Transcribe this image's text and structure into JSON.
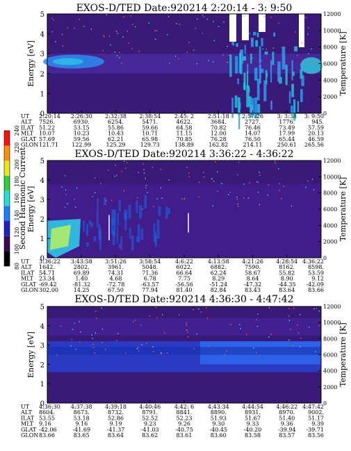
{
  "chart_data": [
    {
      "type": "heatmap",
      "title": "EXOS-D/TED   Date:920214  2:20:14 - 3: 9:50",
      "ylabel": "Energy [eV]",
      "y2label": "Temperature [K]",
      "ylim": [
        0,
        5
      ],
      "yticks": [
        "0",
        "1",
        "2",
        "3",
        "4",
        "5"
      ],
      "y2lim": [
        0,
        12000
      ],
      "y2ticks": [
        "0",
        "2000",
        "4000",
        "6000",
        "8000",
        "10000",
        "12000"
      ],
      "table_rows": [
        {
          "label": "UT",
          "values": [
            "2:20:14",
            "2:26:30",
            "2:32:38",
            "2:38:54",
            "2:45: 2",
            "2:51:18",
            "2:57:26",
            "3: 3:38",
            "3: 9:50"
          ]
        },
        {
          "label": "ALT",
          "values": [
            "7526.",
            "6930.",
            "6254.",
            "5471.",
            "4622.",
            "3684.",
            "2727.",
            "1776.",
            "945."
          ]
        },
        {
          "label": "ILAT",
          "values": [
            "51.22",
            "53.15",
            "55.86",
            "59.66",
            "64.58",
            "70.82",
            "76.46",
            "73.49",
            "57.59"
          ]
        },
        {
          "label": "MLT",
          "values": [
            "10.07",
            "10.23",
            "10.43",
            "10.71",
            "11.15",
            "12.00",
            "14.07",
            "17.99",
            "20.13"
          ]
        },
        {
          "label": "GLAT",
          "values": [
            "57.69",
            "59.56",
            "62.21",
            "65.98",
            "70.85",
            "76.28",
            "76.50",
            "65.44",
            "46.59"
          ]
        },
        {
          "label": "GLON",
          "values": [
            "121.71",
            "122.99",
            "125.29",
            "129.73",
            "138.89",
            "162.82",
            "214.11",
            "250.61",
            "265.56"
          ]
        }
      ]
    },
    {
      "type": "heatmap",
      "title": "EXOS-D/TED   Date:920214  3:36:22 - 4:36:22",
      "ylabel": "Energy [eV]",
      "y2label": "Temperature [K]",
      "ylim": [
        0,
        5
      ],
      "yticks": [
        "0",
        "1",
        "2",
        "3",
        "4",
        "5"
      ],
      "y2lim": [
        0,
        12000
      ],
      "y2ticks": [
        "0",
        "2000",
        "4000",
        "6000",
        "8000",
        "10000",
        "12000"
      ],
      "colorbar": {
        "label": "Second Harmonic Current",
        "min": 80,
        "max": 240,
        "ticks": [
          "80",
          "100",
          "120",
          "140",
          "160",
          "180",
          "200",
          "220",
          "240"
        ],
        "colors": [
          "#000000",
          "#3a0a58",
          "#2020c8",
          "#1880ff",
          "#20e0e0",
          "#30d040",
          "#e8e820",
          "#ff9000",
          "#ff1010"
        ]
      },
      "table_rows": [
        {
          "label": "UT",
          "values": [
            "3:36:22",
            "3:43:58",
            "3:51:26",
            "3:58:54",
            "4:6:22",
            "4:13:58",
            "4:21:26",
            "4:28:54",
            "4:36:22"
          ]
        },
        {
          "label": "ALT",
          "values": [
            "1642.",
            "2802.",
            "3961.",
            "5048.",
            "6022.",
            "6882.",
            "7590.",
            "8162.",
            "8598."
          ]
        },
        {
          "label": "ILAT",
          "values": [
            "54.71",
            "69.89",
            "74.31",
            "71.36",
            "66.64",
            "62.24",
            "58.67",
            "55.82",
            "53.59"
          ]
        },
        {
          "label": "MLT",
          "values": [
            "23.34",
            "1.40",
            "4.68",
            "6.78",
            "7.75",
            "8.29",
            "8.64",
            "8.90",
            "9.12"
          ]
        },
        {
          "label": "GLAT",
          "values": [
            "-69.42",
            "-81.32",
            "-72.78",
            "-63.57",
            "-56.56",
            "-51.24",
            "-47.32",
            "-44.35",
            "-42.09"
          ]
        },
        {
          "label": "GLON",
          "values": [
            "302.00",
            "14.25",
            "67.50",
            "77.94",
            "81.40",
            "82.84",
            "83.43",
            "83.64",
            "83.66"
          ]
        }
      ]
    },
    {
      "type": "heatmap",
      "title": "EXOS-D/TED   Date:920214  4:36:30 - 4:47:42",
      "ylabel": "Energy [eV]",
      "y2label": "Temperature [K]",
      "ylim": [
        0,
        5
      ],
      "yticks": [
        "0",
        "1",
        "2",
        "3",
        "4",
        "5"
      ],
      "y2lim": [
        0,
        12000
      ],
      "y2ticks": [
        "0",
        "2000",
        "4000",
        "6000",
        "8000",
        "10000",
        "12000"
      ],
      "table_rows": [
        {
          "label": "UT",
          "values": [
            "4:36:30",
            "4:37:38",
            "4:39:18",
            "4:40:46",
            "4:42: 6",
            "4:43:34",
            "4:44:54",
            "4:46:22",
            "4:47:42"
          ]
        },
        {
          "label": "ALT",
          "values": [
            "8604.",
            "8673.",
            "8732.",
            "8791.",
            "8841.",
            "8890.",
            "8931.",
            "8970.",
            "9002."
          ]
        },
        {
          "label": "ILAT",
          "values": [
            "53.55",
            "53.18",
            "52.86",
            "52.52",
            "52.23",
            "51.93",
            "51.67",
            "51.40",
            "51.17"
          ]
        },
        {
          "label": "MLT",
          "values": [
            "9.16",
            "9.16",
            "9.19",
            "9.23",
            "9.26",
            "9.30",
            "9.33",
            "9.36",
            "9.39"
          ]
        },
        {
          "label": "GLAT",
          "values": [
            "-42.06",
            "-41.69",
            "-41.37",
            "-41.03",
            "-40.75",
            "-40.45",
            "-40.20",
            "-39.94",
            "-39.71"
          ]
        },
        {
          "label": "GLON",
          "values": [
            "83.66",
            "83.65",
            "83.64",
            "83.62",
            "83.61",
            "83.60",
            "83.58",
            "83.57",
            "83.56"
          ]
        }
      ]
    }
  ]
}
